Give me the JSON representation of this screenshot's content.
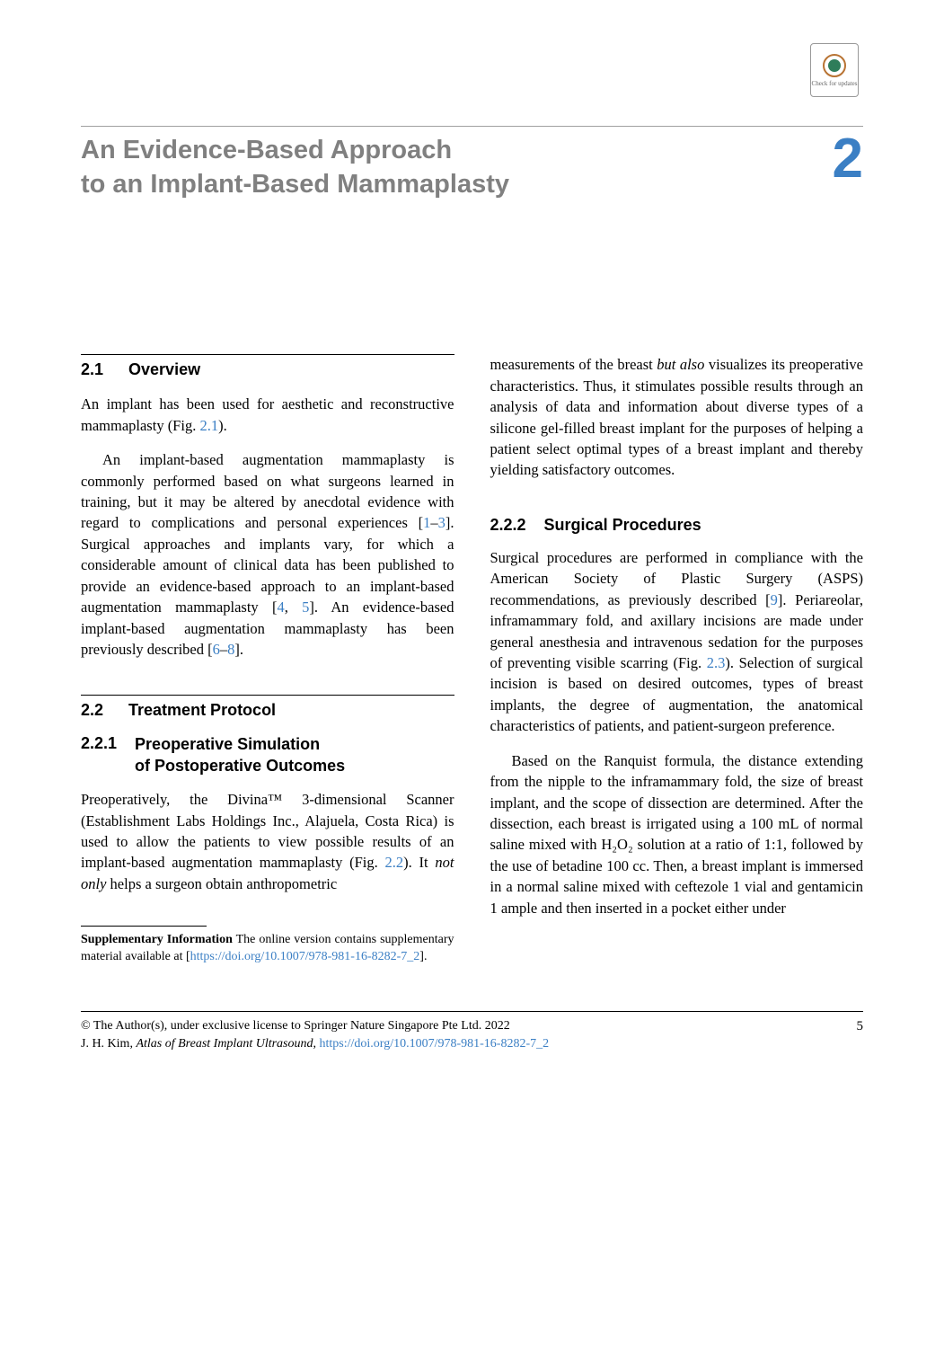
{
  "check_updates": {
    "label": "Check for updates"
  },
  "chapter": {
    "title_line1": "An Evidence-Based Approach",
    "title_line2": "to an Implant-Based Mammaplasty",
    "number": "2"
  },
  "sections": {
    "s1": {
      "number": "2.1",
      "title": "Overview",
      "p1": "An implant has been used for aesthetic and reconstructive mammaplasty (Fig. ",
      "p1_ref": "2.1",
      "p1_end": ").",
      "p2_a": "An implant-based augmentation mammaplasty is commonly performed based on what surgeons learned in training, but it may be altered by anecdotal evidence with regard to complications and personal experiences [",
      "p2_ref1": "1",
      "p2_dash": "–",
      "p2_ref2": "3",
      "p2_b": "]. Surgical approaches and implants vary, for which a considerable amount of clinical data has been published to provide an evidence-based approach to an implant-based augmentation mammaplasty [",
      "p2_ref3": "4",
      "p2_comma": ", ",
      "p2_ref4": "5",
      "p2_c": "]. An evidence-based implant-based augmentation mammaplasty has been previously described [",
      "p2_ref5": "6",
      "p2_dash2": "–",
      "p2_ref6": "8",
      "p2_d": "]."
    },
    "s2": {
      "number": "2.2",
      "title": "Treatment Protocol"
    },
    "s21": {
      "number": "2.2.1",
      "title_line1": "Preoperative Simulation",
      "title_line2": "of Postoperative Outcomes",
      "p1_a": "Preoperatively, the Divina™ 3-dimensional Scanner (Establishment Labs Holdings Inc., Alajuela, Costa Rica) is used to allow the patients to view possible results of an implant-based augmentation mammaplasty (Fig. ",
      "p1_ref": "2.2",
      "p1_b": "). It ",
      "p1_italic": "not only",
      "p1_c": " helps a surgeon obtain anthropometric"
    },
    "col2_p1_a": "measurements of the breast ",
    "col2_p1_italic": "but also",
    "col2_p1_b": " visualizes its preoperative characteristics. Thus, it stimulates possible results through an analysis of data and information about diverse types of a silicone gel-filled breast implant for the purposes of helping a patient select optimal types of a breast implant and thereby yielding satisfactory outcomes.",
    "s22": {
      "number": "2.2.2",
      "title": "Surgical Procedures",
      "p1_a": "Surgical procedures are performed in compliance with the American Society of Plastic Surgery (ASPS) recommendations, as previously described [",
      "p1_ref1": "9",
      "p1_b": "]. Periareolar, inframammary fold, and axillary incisions are made under general anesthesia and intravenous sedation for the purposes of preventing visible scarring (Fig. ",
      "p1_ref2": "2.3",
      "p1_c": "). Selection of surgical incision is based on desired outcomes, types of breast implants, the degree of augmentation, the anatomical characteristics of patients, and patient-surgeon preference.",
      "p2": "Based on the Ranquist formula, the distance extending from the nipple to the inframammary fold, the size of breast implant, and the scope of dissection are determined. After the dissection, each breast is irrigated using a 100 mL of normal saline mixed with H₂O₂ solution at a ratio of 1:1, followed by the use of betadine 100 cc. Then, a breast implant is immersed in a normal saline mixed with ceftezole 1 vial and gentamicin 1 ample and then inserted in a pocket either under"
    }
  },
  "supplementary": {
    "bold": "Supplementary Information",
    "text": " The online version contains supplementary material available at [",
    "link": "https://doi.org/10.1007/978-981-16-8282-7_2",
    "end": "]."
  },
  "footer": {
    "copyright": "© The Author(s), under exclusive license to Springer Nature Singapore Pte Ltd. 2022",
    "citation_a": "J. H. Kim, ",
    "citation_italic": "Atlas of Breast Implant Ultrasound",
    "citation_b": ", ",
    "citation_link": "https://doi.org/10.1007/978-981-16-8282-7_2",
    "page": "5"
  }
}
